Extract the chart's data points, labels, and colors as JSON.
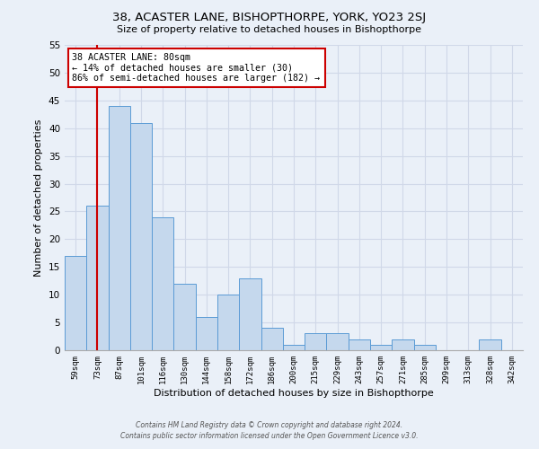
{
  "title": "38, ACASTER LANE, BISHOPTHORPE, YORK, YO23 2SJ",
  "subtitle": "Size of property relative to detached houses in Bishopthorpe",
  "xlabel": "Distribution of detached houses by size in Bishopthorpe",
  "ylabel": "Number of detached properties",
  "bin_labels": [
    "59sqm",
    "73sqm",
    "87sqm",
    "101sqm",
    "116sqm",
    "130sqm",
    "144sqm",
    "158sqm",
    "172sqm",
    "186sqm",
    "200sqm",
    "215sqm",
    "229sqm",
    "243sqm",
    "257sqm",
    "271sqm",
    "285sqm",
    "299sqm",
    "313sqm",
    "328sqm",
    "342sqm"
  ],
  "bar_heights": [
    17,
    26,
    44,
    41,
    24,
    12,
    6,
    10,
    13,
    4,
    1,
    3,
    3,
    2,
    1,
    2,
    1,
    0,
    0,
    2,
    0
  ],
  "bar_color": "#c5d8ed",
  "bar_edge_color": "#5b9bd5",
  "grid_color": "#d0d8e8",
  "bg_color": "#eaf0f8",
  "plot_bg_color": "#eaf0f8",
  "annotation_text_line1": "38 ACASTER LANE: 80sqm",
  "annotation_text_line2": "← 14% of detached houses are smaller (30)",
  "annotation_text_line3": "86% of semi-detached houses are larger (182) →",
  "annotation_box_color": "#ffffff",
  "annotation_box_edge_color": "#cc0000",
  "vline_color": "#cc0000",
  "footer_line1": "Contains HM Land Registry data © Crown copyright and database right 2024.",
  "footer_line2": "Contains public sector information licensed under the Open Government Licence v3.0.",
  "ylim": [
    0,
    55
  ],
  "yticks": [
    0,
    5,
    10,
    15,
    20,
    25,
    30,
    35,
    40,
    45,
    50,
    55
  ],
  "vline_x": 1.5
}
